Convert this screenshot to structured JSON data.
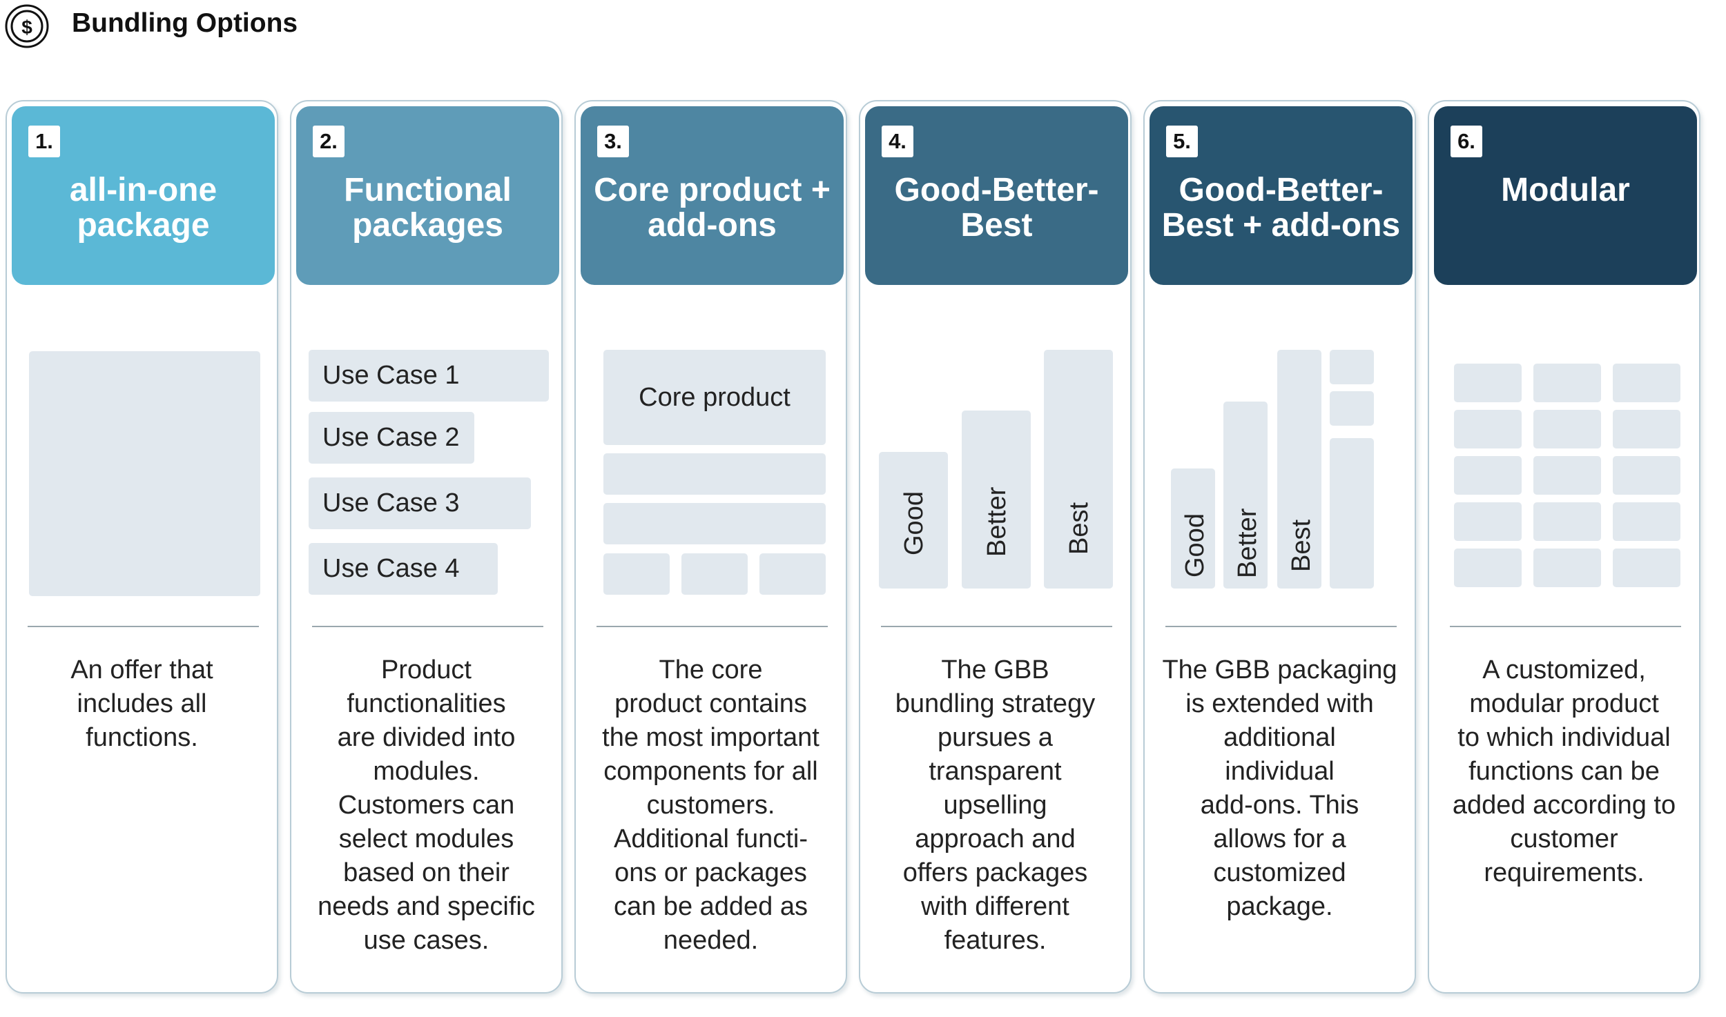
{
  "header": {
    "title": "Bundling Options",
    "icon": "dollar-circle-icon"
  },
  "colors": {
    "card1": "#5bb8d6",
    "card2": "#5f9cb8",
    "card3": "#4e86a2",
    "card4": "#3a6b86",
    "card5": "#285570",
    "card6": "#1c405a",
    "box": "#e1e8ee"
  },
  "cards": [
    {
      "number": "1.",
      "title": "all-in-one\npackage",
      "description": "An offer that\nincludes all\nfunctions."
    },
    {
      "number": "2.",
      "title": "Functional\npackages",
      "use_cases": [
        "Use Case 1",
        "Use Case 2",
        "Use Case 3",
        "Use Case 4"
      ],
      "description": "Product\nfunctionalities\nare divided into\nmodules.\nCustomers can\nselect modules\nbased on their\nneeds and specific\nuse cases."
    },
    {
      "number": "3.",
      "title": "Core product +\nadd-ons",
      "core_label": "Core product",
      "description": "The core\nproduct contains\nthe most important\ncomponents for all\ncustomers.\nAdditional functi-\nons or packages\ncan be added as\nneeded."
    },
    {
      "number": "4.",
      "title": "Good-Better-\nBest",
      "tiers": [
        "Good",
        "Better",
        "Best"
      ],
      "description": "The GBB\nbundling strategy\npursues a\ntransparent\nupselling\napproach and\noffers packages\nwith different\nfeatures."
    },
    {
      "number": "5.",
      "title": "Good-Better-\nBest + add-ons",
      "tiers": [
        "Good",
        "Better",
        "Best"
      ],
      "description": "The GBB packaging\nis extended with\nadditional\nindividual\nadd-ons. This\nallows for a\ncustomized\npackage."
    },
    {
      "number": "6.",
      "title": "Modular",
      "description": "A customized,\nmodular product\nto which individual\nfunctions can be\nadded according to\ncustomer\nrequirements."
    }
  ]
}
